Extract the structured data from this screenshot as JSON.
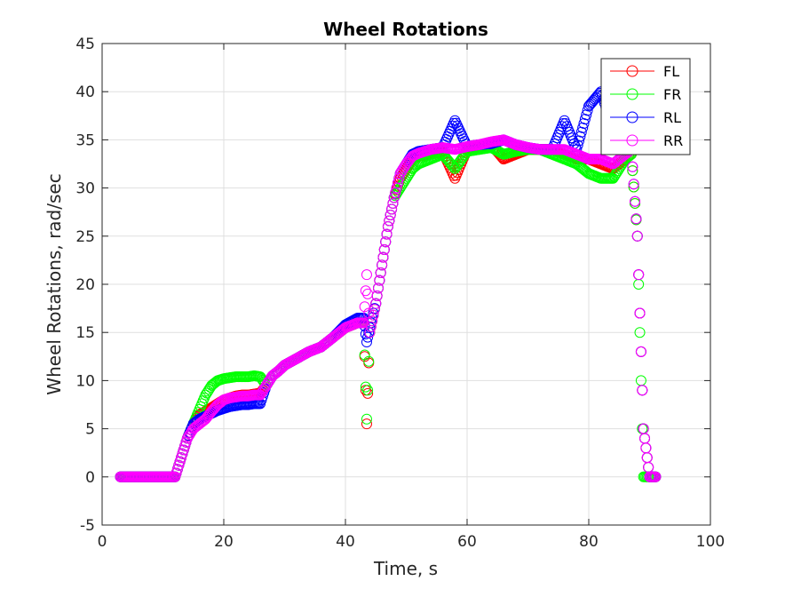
{
  "chart_data": {
    "type": "scatter",
    "title": "Wheel Rotations",
    "xlabel": "Time, s",
    "ylabel": "Wheel Rotations, rad/sec",
    "xlim": [
      0,
      100
    ],
    "ylim": [
      -5,
      45
    ],
    "xticks": [
      "0",
      "20",
      "40",
      "60",
      "80",
      "100"
    ],
    "yticks": [
      "-5",
      "0",
      "5",
      "10",
      "15",
      "20",
      "25",
      "30",
      "35",
      "40",
      "45"
    ],
    "grid": true,
    "legend_position": "top-right",
    "marker": "circle-open",
    "series": [
      {
        "name": "FL",
        "color": "#ff0000",
        "x": [
          3,
          5,
          8,
          11,
          12,
          13,
          14,
          15,
          16,
          17,
          18,
          19,
          20,
          21,
          22,
          23,
          24,
          25,
          26,
          27,
          28,
          29,
          30,
          32,
          34,
          36,
          38,
          40,
          42,
          43,
          43.5,
          44,
          45,
          46,
          47,
          48,
          49,
          50,
          51,
          52,
          54,
          56,
          58,
          60,
          62,
          64,
          66,
          68,
          70,
          72,
          74,
          76,
          78,
          80,
          82,
          84,
          86,
          87,
          88,
          89,
          90,
          91
        ],
        "y": [
          0,
          0,
          0,
          0,
          0,
          2,
          4,
          5.5,
          6.5,
          6.8,
          7.2,
          7.6,
          8,
          8.2,
          8.4,
          8.5,
          8.5,
          8.6,
          8.7,
          9.5,
          10.5,
          11,
          11.6,
          12.3,
          13,
          13.5,
          14.5,
          15.5,
          16,
          16,
          5.5,
          15,
          18,
          22,
          26,
          29,
          31,
          32,
          33,
          33.3,
          33.5,
          33.8,
          31,
          34,
          34.2,
          34.5,
          33,
          33.5,
          34,
          34,
          34,
          33.5,
          33,
          33,
          32.5,
          32,
          33,
          33.5,
          25,
          5,
          0,
          0
        ]
      },
      {
        "name": "FR",
        "color": "#00ff00",
        "x": [
          3,
          5,
          8,
          11,
          12,
          13,
          14,
          15,
          16,
          17,
          18,
          19,
          20,
          21,
          22,
          23,
          24,
          25,
          26,
          27,
          28,
          29,
          30,
          32,
          34,
          36,
          38,
          40,
          42,
          43,
          43.5,
          44,
          45,
          46,
          47,
          48,
          49,
          50,
          51,
          52,
          54,
          56,
          58,
          60,
          62,
          64,
          66,
          68,
          70,
          72,
          74,
          76,
          78,
          80,
          82,
          84,
          86,
          87,
          88,
          89,
          90,
          91
        ],
        "y": [
          0,
          0,
          0,
          0,
          0,
          2,
          4,
          5.5,
          7,
          8.5,
          9.5,
          10,
          10.2,
          10.3,
          10.4,
          10.4,
          10.4,
          10.5,
          10.4,
          9.5,
          10.5,
          11,
          11.6,
          12.3,
          13,
          13.5,
          14.5,
          15.5,
          16,
          16,
          6,
          15,
          18,
          22,
          26,
          29,
          30,
          31,
          32,
          32.5,
          33,
          33.5,
          32,
          33.8,
          34,
          34.2,
          33.5,
          33.8,
          34,
          34,
          33.5,
          33,
          32.5,
          31.5,
          31,
          31,
          33,
          33.5,
          25,
          0,
          0,
          0
        ]
      },
      {
        "name": "RL",
        "color": "#0000ff",
        "x": [
          3,
          5,
          8,
          11,
          12,
          13,
          14,
          15,
          16,
          17,
          18,
          19,
          20,
          21,
          22,
          23,
          24,
          25,
          26,
          27,
          28,
          29,
          30,
          32,
          34,
          36,
          38,
          40,
          42,
          43,
          43.5,
          44,
          45,
          46,
          47,
          48,
          49,
          50,
          51,
          52,
          54,
          56,
          58,
          60,
          62,
          64,
          66,
          68,
          70,
          72,
          74,
          76,
          78,
          80,
          82,
          84,
          86,
          87,
          88,
          89,
          90,
          91
        ],
        "y": [
          0,
          0,
          0,
          0,
          0,
          2,
          4,
          5.5,
          6,
          6.3,
          6.6,
          6.9,
          7.1,
          7.3,
          7.4,
          7.5,
          7.5,
          7.6,
          7.6,
          9.5,
          10.5,
          11,
          11.6,
          12.3,
          13,
          13.5,
          14.5,
          15.8,
          16.5,
          16.5,
          14,
          15.5,
          18,
          22,
          26,
          29,
          31.5,
          32.5,
          33.5,
          33.8,
          34,
          34.2,
          37,
          34.3,
          34.5,
          34.6,
          35,
          34.5,
          34.2,
          34,
          34,
          37,
          34,
          38.5,
          40,
          36,
          34,
          34,
          25,
          5,
          0,
          0
        ]
      },
      {
        "name": "RR",
        "color": "#ff00ff",
        "x": [
          3,
          5,
          8,
          11,
          12,
          13,
          14,
          15,
          16,
          17,
          18,
          19,
          20,
          21,
          22,
          23,
          24,
          25,
          26,
          27,
          28,
          29,
          30,
          32,
          34,
          36,
          38,
          40,
          42,
          43,
          43.5,
          44,
          45,
          46,
          47,
          48,
          49,
          50,
          51,
          52,
          54,
          56,
          58,
          60,
          62,
          64,
          66,
          68,
          70,
          72,
          74,
          76,
          78,
          80,
          82,
          84,
          86,
          87,
          88,
          89,
          90,
          91
        ],
        "y": [
          0,
          0,
          0,
          0,
          0,
          2,
          4,
          5,
          5.5,
          6,
          6.8,
          7.5,
          8,
          8.2,
          8.3,
          8.4,
          8.4,
          8.5,
          8.5,
          9.5,
          10.5,
          11,
          11.6,
          12.3,
          13,
          13.5,
          14.5,
          15.5,
          16,
          16,
          21,
          15,
          18,
          22,
          26,
          29,
          31.5,
          32.5,
          33.3,
          33.6,
          34,
          34.2,
          34,
          34.3,
          34.5,
          34.8,
          35,
          34.5,
          34.2,
          34,
          34,
          34,
          33.5,
          33,
          33,
          32.5,
          33.5,
          34,
          25,
          5,
          0,
          0
        ]
      }
    ]
  }
}
